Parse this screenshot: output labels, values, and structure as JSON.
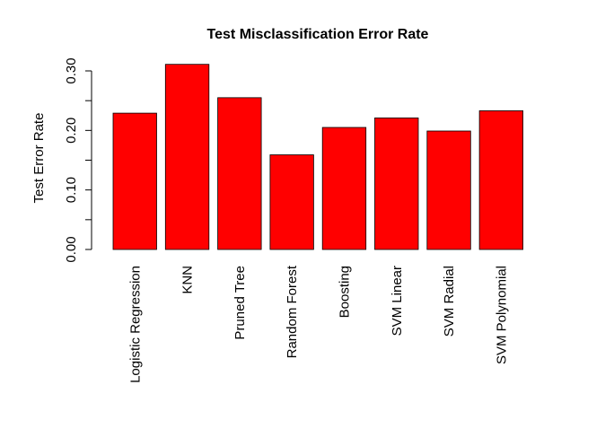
{
  "chart_data": {
    "type": "bar",
    "title": "Test Misclassification Error Rate",
    "xlabel": "",
    "ylabel": "Test Error Rate",
    "categories": [
      "Logistic Regression",
      "KNN",
      "Pruned Tree",
      "Random Forest",
      "Boosting",
      "SVM Linear",
      "SVM Radial",
      "SVM Polynomial"
    ],
    "values": [
      0.229,
      0.311,
      0.255,
      0.159,
      0.205,
      0.221,
      0.199,
      0.233
    ],
    "ylim": [
      0,
      0.3
    ],
    "yticks": [
      0.0,
      0.05,
      0.1,
      0.15,
      0.2,
      0.25,
      0.3
    ],
    "ytick_labels": [
      "0.00",
      "",
      "0.10",
      "",
      "0.20",
      "",
      "0.30"
    ],
    "bar_color": "#ff0000",
    "bar_border_color": "#000000",
    "grid": false,
    "legend": "none"
  }
}
